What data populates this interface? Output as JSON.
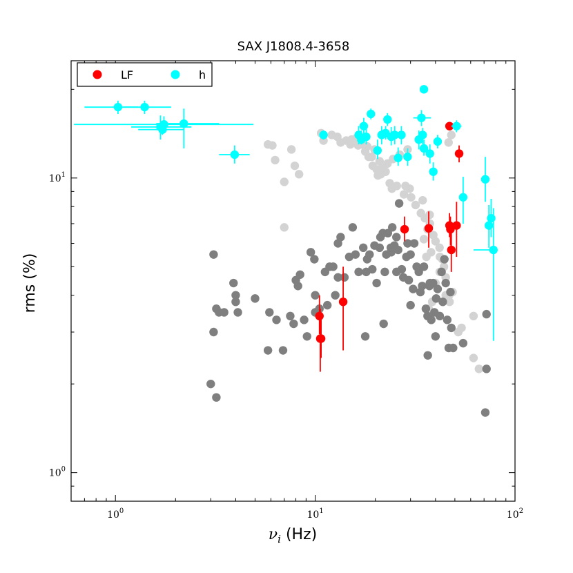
{
  "chart_data": {
    "type": "scatter",
    "title": "SAX J1808.4-3658",
    "xlabel_symbol": "ν",
    "xlabel_subscript": "i",
    "xlabel_unit": " (Hz)",
    "ylabel": "rms (%)",
    "xscale": "log",
    "yscale": "log",
    "xlim": [
      0.6,
      100
    ],
    "ylim": [
      0.8,
      25
    ],
    "legend_position": "top-left",
    "x_major_ticks": [
      {
        "value": 1,
        "base": "10",
        "exp": "0"
      },
      {
        "value": 10,
        "base": "10",
        "exp": "1"
      },
      {
        "value": 100,
        "base": "10",
        "exp": "2"
      }
    ],
    "y_major_ticks": [
      {
        "value": 1,
        "base": "10",
        "exp": "0"
      },
      {
        "value": 10,
        "base": "10",
        "exp": "1"
      }
    ],
    "legend": [
      {
        "label": "LF",
        "color": "#ff0000"
      },
      {
        "label": "h",
        "color": "#00ffff"
      }
    ],
    "background_series": [
      {
        "color": "#d3d3d3",
        "points": [
          [
            7.0,
            6.8
          ],
          [
            7.0,
            9.7
          ],
          [
            6.3,
            11.5
          ],
          [
            5.8,
            13.0
          ],
          [
            6.1,
            12.9
          ],
          [
            7.6,
            12.5
          ],
          [
            7.9,
            11.0
          ],
          [
            8.3,
            10.3
          ],
          [
            10.7,
            14.2
          ],
          [
            11.0,
            13.4
          ],
          [
            12.1,
            14.0
          ],
          [
            12.9,
            13.8
          ],
          [
            13.4,
            13.2
          ],
          [
            14.3,
            13.4
          ],
          [
            15.2,
            13.5
          ],
          [
            16.4,
            12.9
          ],
          [
            17.8,
            12.3
          ],
          [
            18.5,
            11.8
          ],
          [
            19.2,
            11.8
          ],
          [
            19.4,
            11.0
          ],
          [
            20.3,
            10.7
          ],
          [
            21.0,
            11.4
          ],
          [
            21.3,
            10.3
          ],
          [
            22.5,
            10.5
          ],
          [
            23.6,
            9.6
          ],
          [
            24.2,
            9.2
          ],
          [
            25.6,
            9.4
          ],
          [
            27.8,
            8.8
          ],
          [
            28.3,
            9.4
          ],
          [
            29.7,
            9.2
          ],
          [
            30.2,
            8.6
          ],
          [
            31.8,
            8.1
          ],
          [
            33.8,
            7.6
          ],
          [
            34.5,
            8.4
          ],
          [
            35.4,
            7.3
          ],
          [
            36.5,
            6.7
          ],
          [
            37.4,
            7.5
          ],
          [
            39.0,
            6.4
          ],
          [
            40.0,
            6.1
          ],
          [
            41.9,
            5.8
          ],
          [
            42.1,
            5.4
          ],
          [
            43.3,
            5.3
          ],
          [
            44.1,
            5.0
          ],
          [
            45.0,
            4.6
          ],
          [
            42.0,
            4.8
          ],
          [
            40.0,
            4.4
          ],
          [
            38.5,
            3.8
          ],
          [
            37.0,
            3.6
          ],
          [
            45.0,
            4.0
          ],
          [
            47.0,
            3.8
          ],
          [
            54.0,
            3.1
          ],
          [
            52.0,
            3.0
          ],
          [
            62.0,
            2.45
          ],
          [
            66.0,
            2.25
          ],
          [
            48.0,
            14.0
          ],
          [
            46.5,
            13.2
          ],
          [
            33.0,
            13.5
          ],
          [
            29.0,
            12.5
          ],
          [
            26.5,
            12.0
          ],
          [
            24.5,
            11.6
          ],
          [
            23.0,
            11.2
          ],
          [
            21.6,
            10.8
          ],
          [
            20.6,
            10.2
          ],
          [
            19.8,
            12.5
          ],
          [
            18.2,
            12.8
          ],
          [
            17.2,
            13.0
          ],
          [
            16.0,
            13.6
          ],
          [
            15.0,
            13.0
          ],
          [
            37.5,
            7.0
          ],
          [
            35.0,
            6.2
          ],
          [
            38.0,
            5.6
          ],
          [
            36.0,
            5.4
          ],
          [
            46.8,
            4.0
          ],
          [
            48.7,
            4.1
          ],
          [
            62.0,
            3.4
          ]
        ]
      },
      {
        "color": "#7f7f7f",
        "points": [
          [
            3.0,
            2.0
          ],
          [
            3.1,
            5.5
          ],
          [
            3.1,
            3.0
          ],
          [
            3.2,
            3.6
          ],
          [
            3.2,
            1.8
          ],
          [
            3.3,
            3.5
          ],
          [
            3.5,
            3.5
          ],
          [
            3.9,
            4.4
          ],
          [
            4.0,
            4.0
          ],
          [
            4.0,
            3.8
          ],
          [
            4.1,
            3.5
          ],
          [
            5.0,
            3.9
          ],
          [
            5.8,
            2.6
          ],
          [
            5.9,
            3.5
          ],
          [
            6.4,
            3.3
          ],
          [
            6.9,
            2.6
          ],
          [
            7.5,
            3.4
          ],
          [
            7.8,
            3.2
          ],
          [
            8.0,
            4.5
          ],
          [
            8.2,
            4.3
          ],
          [
            8.4,
            4.7
          ],
          [
            8.8,
            3.3
          ],
          [
            9.1,
            2.9
          ],
          [
            9.5,
            5.6
          ],
          [
            9.9,
            5.3
          ],
          [
            10.0,
            3.5
          ],
          [
            10.0,
            4.0
          ],
          [
            10.5,
            3.6
          ],
          [
            11.2,
            4.8
          ],
          [
            11.5,
            3.7
          ],
          [
            11.8,
            5.0
          ],
          [
            12.3,
            5.0
          ],
          [
            12.6,
            4.0
          ],
          [
            13.0,
            4.6
          ],
          [
            13.4,
            6.3
          ],
          [
            14.0,
            4.6
          ],
          [
            14.8,
            5.4
          ],
          [
            15.4,
            6.8
          ],
          [
            15.9,
            5.5
          ],
          [
            16.5,
            4.8
          ],
          [
            17.4,
            5.8
          ],
          [
            17.8,
            2.9
          ],
          [
            18.2,
            5.3
          ],
          [
            18.7,
            5.5
          ],
          [
            19.3,
            4.9
          ],
          [
            19.8,
            5.9
          ],
          [
            20.3,
            4.4
          ],
          [
            21.0,
            5.8
          ],
          [
            21.2,
            6.3
          ],
          [
            21.8,
            6.5
          ],
          [
            22.3,
            4.8
          ],
          [
            22.7,
            5.5
          ],
          [
            23.1,
            6.5
          ],
          [
            23.9,
            5.8
          ],
          [
            24.3,
            6.8
          ],
          [
            24.9,
            5.9
          ],
          [
            25.5,
            6.3
          ],
          [
            26.0,
            5.7
          ],
          [
            26.3,
            8.2
          ],
          [
            27.1,
            4.9
          ],
          [
            27.6,
            4.6
          ],
          [
            28.6,
            5.4
          ],
          [
            29.4,
            4.5
          ],
          [
            30.0,
            5.5
          ],
          [
            30.9,
            4.2
          ],
          [
            31.3,
            6.0
          ],
          [
            32.2,
            5.0
          ],
          [
            33.0,
            4.8
          ],
          [
            33.6,
            4.1
          ],
          [
            34.3,
            4.3
          ],
          [
            35.0,
            5.0
          ],
          [
            35.8,
            3.6
          ],
          [
            36.6,
            2.5
          ],
          [
            37.3,
            4.3
          ],
          [
            38.1,
            3.3
          ],
          [
            38.9,
            4.4
          ],
          [
            39.5,
            3.5
          ],
          [
            40.3,
            3.9
          ],
          [
            41.0,
            4.2
          ],
          [
            42.0,
            3.4
          ],
          [
            42.9,
            4.8
          ],
          [
            43.5,
            3.8
          ],
          [
            44.3,
            5.3
          ],
          [
            45.0,
            4.4
          ],
          [
            45.8,
            3.3
          ],
          [
            46.6,
            2.65
          ],
          [
            47.5,
            4.1
          ],
          [
            48.0,
            3.1
          ],
          [
            49.0,
            2.65
          ],
          [
            55.0,
            2.75
          ],
          [
            72.0,
            2.25
          ],
          [
            72.0,
            3.45
          ],
          [
            71.0,
            1.6
          ],
          [
            37.5,
            4.4
          ],
          [
            30.0,
            3.7
          ],
          [
            25.5,
            4.8
          ],
          [
            22.0,
            3.2
          ],
          [
            13.0,
            6.0
          ],
          [
            18.0,
            4.8
          ],
          [
            24.0,
            5.6
          ],
          [
            29.0,
            6.0
          ],
          [
            36.5,
            3.4
          ],
          [
            40.0,
            2.9
          ]
        ]
      }
    ],
    "series": [
      {
        "name": "LF",
        "color": "#ff0000",
        "points": [
          {
            "x": 10.5,
            "y": 3.4,
            "ylo": 2.95,
            "yhi": 4.0
          },
          {
            "x": 10.6,
            "y": 2.85,
            "ylo": 2.2,
            "yhi": 3.6
          },
          {
            "x": 10.7,
            "y": 2.85,
            "ylo": 2.45,
            "yhi": 3.3
          },
          {
            "x": 13.8,
            "y": 3.8,
            "ylo": 2.6,
            "yhi": 5.0
          },
          {
            "x": 28.0,
            "y": 6.7,
            "ylo": 6.1,
            "yhi": 7.4
          },
          {
            "x": 37.0,
            "y": 6.75,
            "ylo": 5.8,
            "yhi": 7.7
          },
          {
            "x": 47.0,
            "y": 15.0,
            "ylo": 14.5,
            "yhi": 15.5
          },
          {
            "x": 47.0,
            "y": 6.9,
            "ylo": 6.3,
            "yhi": 7.6
          },
          {
            "x": 47.5,
            "y": 6.7,
            "ylo": 5.9,
            "yhi": 7.4
          },
          {
            "x": 48.0,
            "y": 5.7,
            "ylo": 4.8,
            "yhi": 6.6
          },
          {
            "x": 51.0,
            "y": 6.9,
            "ylo": 5.4,
            "yhi": 8.3
          },
          {
            "x": 52.5,
            "y": 12.1,
            "ylo": 11.3,
            "yhi": 12.9
          }
        ]
      },
      {
        "name": "h",
        "color": "#00ffff",
        "points": [
          {
            "x": 1.03,
            "y": 17.4,
            "xlo": 0.7,
            "xhi": 1.3,
            "ylo": 16.5,
            "yhi": 18.3
          },
          {
            "x": 1.4,
            "y": 17.4,
            "xlo": 1.1,
            "xhi": 1.9,
            "ylo": 16.5,
            "yhi": 18.3
          },
          {
            "x": 1.68,
            "y": 14.9,
            "xlo": 1.2,
            "xhi": 2.4,
            "ylo": 13.5,
            "yhi": 16.3
          },
          {
            "x": 1.72,
            "y": 14.6,
            "xlo": 1.3,
            "xhi": 2.2,
            "ylo": 14.0,
            "yhi": 15.3
          },
          {
            "x": 1.75,
            "y": 15.2,
            "xlo": 0.62,
            "xhi": 4.9,
            "ylo": 14.6,
            "yhi": 16.2
          },
          {
            "x": 2.2,
            "y": 15.3,
            "xlo": 1.6,
            "xhi": 3.3,
            "ylo": 12.6,
            "yhi": 17.2
          },
          {
            "x": 3.95,
            "y": 12.0,
            "xlo": 3.3,
            "xhi": 4.7,
            "ylo": 11.2,
            "yhi": 12.9
          },
          {
            "x": 11.0,
            "y": 14.0,
            "ylo": 13.5,
            "yhi": 14.5
          },
          {
            "x": 16.5,
            "y": 14.0,
            "ylo": 13.0,
            "yhi": 15.0
          },
          {
            "x": 17.0,
            "y": 13.5,
            "ylo": 13.0,
            "yhi": 14.5
          },
          {
            "x": 17.5,
            "y": 15.0,
            "ylo": 14.0,
            "yhi": 16.0
          },
          {
            "x": 18.0,
            "y": 13.8,
            "ylo": 13.0,
            "yhi": 15.0
          },
          {
            "x": 19.0,
            "y": 16.5,
            "ylo": 15.8,
            "yhi": 17.2
          },
          {
            "x": 20.5,
            "y": 12.4,
            "ylo": 11.6,
            "yhi": 13.5
          },
          {
            "x": 21.5,
            "y": 14.0,
            "ylo": 13.0,
            "yhi": 15.0
          },
          {
            "x": 22.5,
            "y": 14.2,
            "ylo": 13.5,
            "yhi": 15.0
          },
          {
            "x": 23.0,
            "y": 15.8,
            "ylo": 15.0,
            "yhi": 16.6
          },
          {
            "x": 24.0,
            "y": 13.8,
            "ylo": 12.9,
            "yhi": 14.9
          },
          {
            "x": 25.0,
            "y": 14.0,
            "ylo": 13.0,
            "yhi": 15.0
          },
          {
            "x": 26.0,
            "y": 11.7,
            "ylo": 11.0,
            "yhi": 12.7
          },
          {
            "x": 27.0,
            "y": 14.0,
            "ylo": 13.0,
            "yhi": 15.0
          },
          {
            "x": 29.0,
            "y": 11.8,
            "ylo": 11.0,
            "yhi": 12.6
          },
          {
            "x": 33.0,
            "y": 13.5,
            "ylo": 12.5,
            "yhi": 14.5
          },
          {
            "x": 34.0,
            "y": 16.0,
            "xlo": 31.0,
            "xhi": 38.0,
            "ylo": 15.0,
            "yhi": 17.0
          },
          {
            "x": 35.0,
            "y": 20.0,
            "ylo": 19.5,
            "yhi": 20.5
          },
          {
            "x": 34.5,
            "y": 14.0,
            "ylo": 13.0,
            "yhi": 14.8
          },
          {
            "x": 35.0,
            "y": 12.6,
            "ylo": 11.9,
            "yhi": 13.5
          },
          {
            "x": 37.5,
            "y": 12.1,
            "ylo": 11.2,
            "yhi": 13.0
          },
          {
            "x": 39.0,
            "y": 10.5,
            "ylo": 9.8,
            "yhi": 11.3
          },
          {
            "x": 41.0,
            "y": 13.3,
            "ylo": 12.6,
            "yhi": 14.0
          },
          {
            "x": 51.0,
            "y": 15.0,
            "xlo": 48.0,
            "xhi": 54.0,
            "ylo": 14.3,
            "yhi": 15.7
          },
          {
            "x": 55.0,
            "y": 8.6,
            "ylo": 7.0,
            "yhi": 10.1
          },
          {
            "x": 71.0,
            "y": 9.9,
            "ylo": 8.3,
            "yhi": 11.8
          },
          {
            "x": 74.0,
            "y": 6.9,
            "ylo": 5.8,
            "yhi": 8.1
          },
          {
            "x": 76.0,
            "y": 7.3,
            "ylo": 6.3,
            "yhi": 8.5
          },
          {
            "x": 78.0,
            "y": 5.7,
            "xlo": 62.0,
            "xhi": 80.0,
            "ylo": 2.8,
            "yhi": 7.9
          }
        ]
      }
    ]
  }
}
